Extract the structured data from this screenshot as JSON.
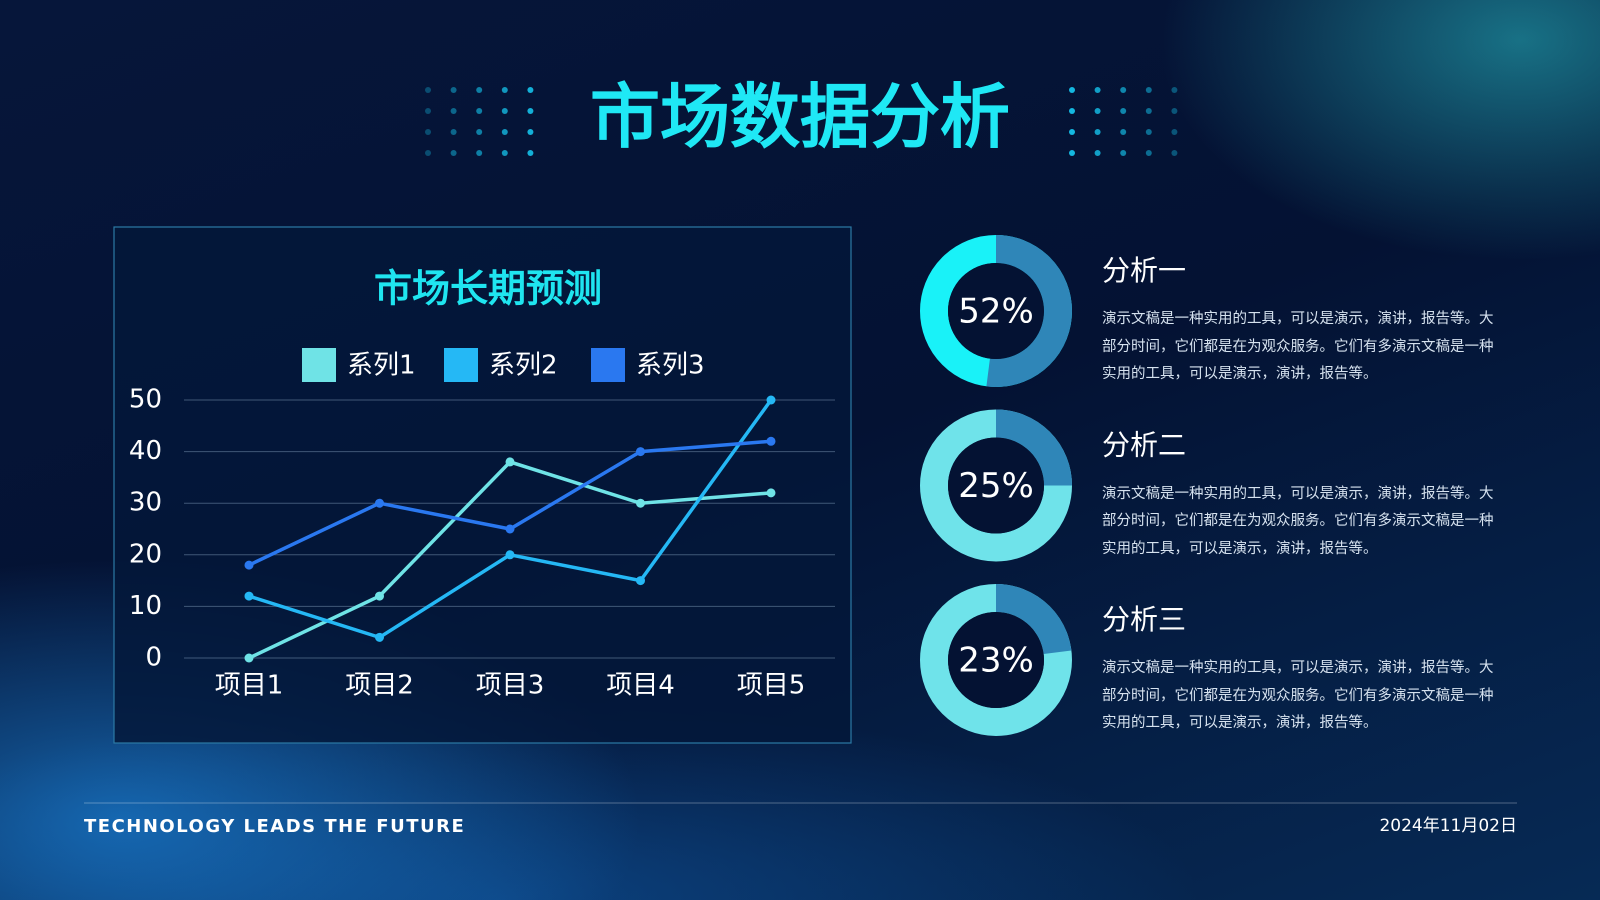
{
  "title": "市场数据分析",
  "chart_data": [
    {
      "type": "line",
      "title": "市场长期预测",
      "categories": [
        "项目1",
        "项目2",
        "项目3",
        "项目4",
        "项目5"
      ],
      "series": [
        {
          "name": "系列1",
          "color": "#6fe3e6",
          "values": [
            0,
            12,
            38,
            30,
            32
          ]
        },
        {
          "name": "系列2",
          "color": "#25b8f5",
          "values": [
            12,
            4,
            20,
            15,
            50
          ]
        },
        {
          "name": "系列3",
          "color": "#2a78f0",
          "values": [
            18,
            30,
            25,
            40,
            42
          ]
        }
      ],
      "ylim": [
        0,
        50
      ],
      "yticks": [
        0,
        10,
        20,
        30,
        40,
        50
      ],
      "grid": true,
      "legend": "top"
    },
    {
      "type": "donut",
      "values": [
        52
      ],
      "value_labels": [
        "52%"
      ],
      "color": "#2f86b8",
      "track_color": "#19f2f8"
    },
    {
      "type": "donut",
      "values": [
        25
      ],
      "value_labels": [
        "25%"
      ],
      "color": "#2f86b8",
      "track_color": "#6fe3ea"
    },
    {
      "type": "donut",
      "values": [
        23
      ],
      "value_labels": [
        "23%"
      ],
      "color": "#2f86b8",
      "track_color": "#6fe3ea"
    }
  ],
  "analysis": [
    {
      "heading": "分析一",
      "text": "演示文稿是一种实用的工具，可以是演示，演讲，报告等。大部分时间，它们都是在为观众服务。它们有多演示文稿是一种实用的工具，可以是演示，演讲，报告等。"
    },
    {
      "heading": "分析二",
      "text": "演示文稿是一种实用的工具，可以是演示，演讲，报告等。大部分时间，它们都是在为观众服务。它们有多演示文稿是一种实用的工具，可以是演示，演讲，报告等。"
    },
    {
      "heading": "分析三",
      "text": "演示文稿是一种实用的工具，可以是演示，演讲，报告等。大部分时间，它们都是在为观众服务。它们有多演示文稿是一种实用的工具，可以是演示，演讲，报告等。"
    }
  ],
  "footer": {
    "slogan": "TECHNOLOGY LEADS THE FUTURE",
    "date": "2024年11月02日"
  }
}
